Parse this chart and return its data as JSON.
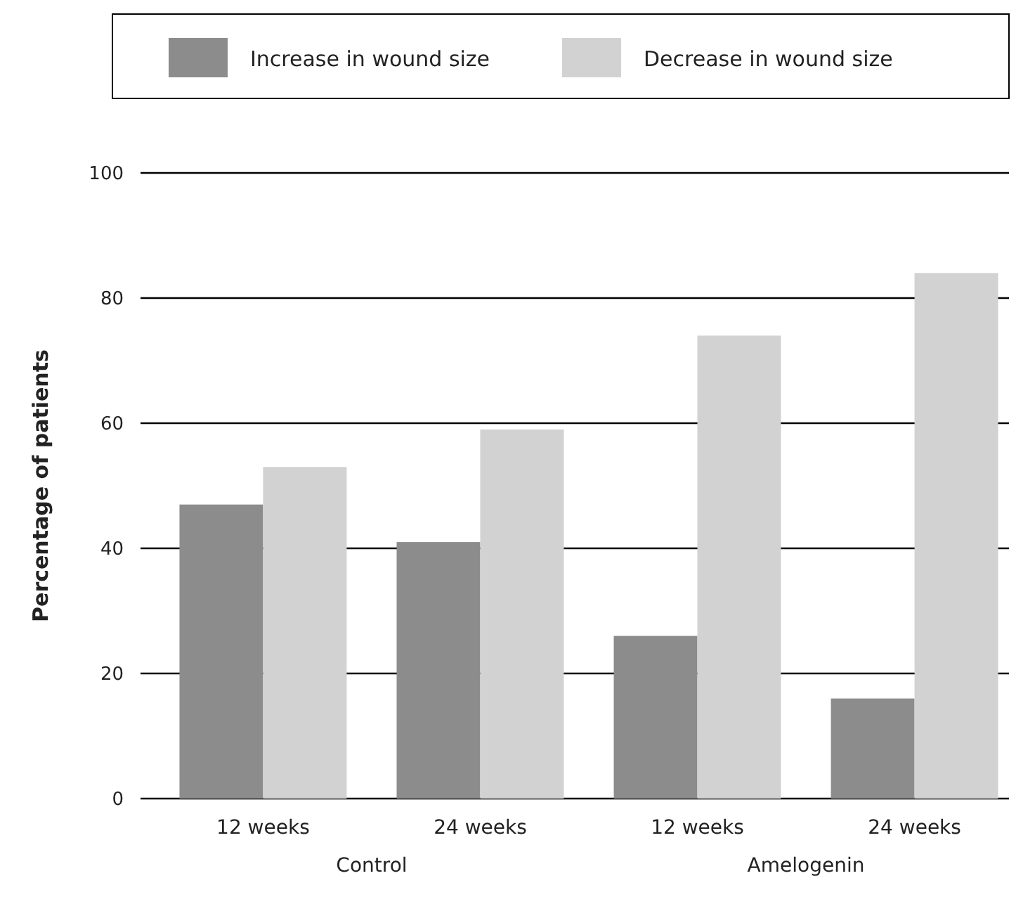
{
  "chart_data": {
    "type": "bar",
    "ylabel": "Percentage of patients",
    "categories": [
      "12 weeks",
      "24 weeks",
      "12 weeks",
      "24 weeks"
    ],
    "series": [
      {
        "name": "Increase in wound size",
        "color": "#8c8c8c",
        "values": [
          47,
          41,
          26,
          16
        ]
      },
      {
        "name": "Decrease in wound size",
        "color": "#d2d2d2",
        "values": [
          53,
          59,
          74,
          84
        ]
      }
    ],
    "ylim": [
      0,
      100
    ],
    "yticks": [
      0,
      20,
      40,
      60,
      80,
      100
    ],
    "grid": "y",
    "legend": "top",
    "annotations": [
      "Control",
      "Amelogenin"
    ]
  }
}
